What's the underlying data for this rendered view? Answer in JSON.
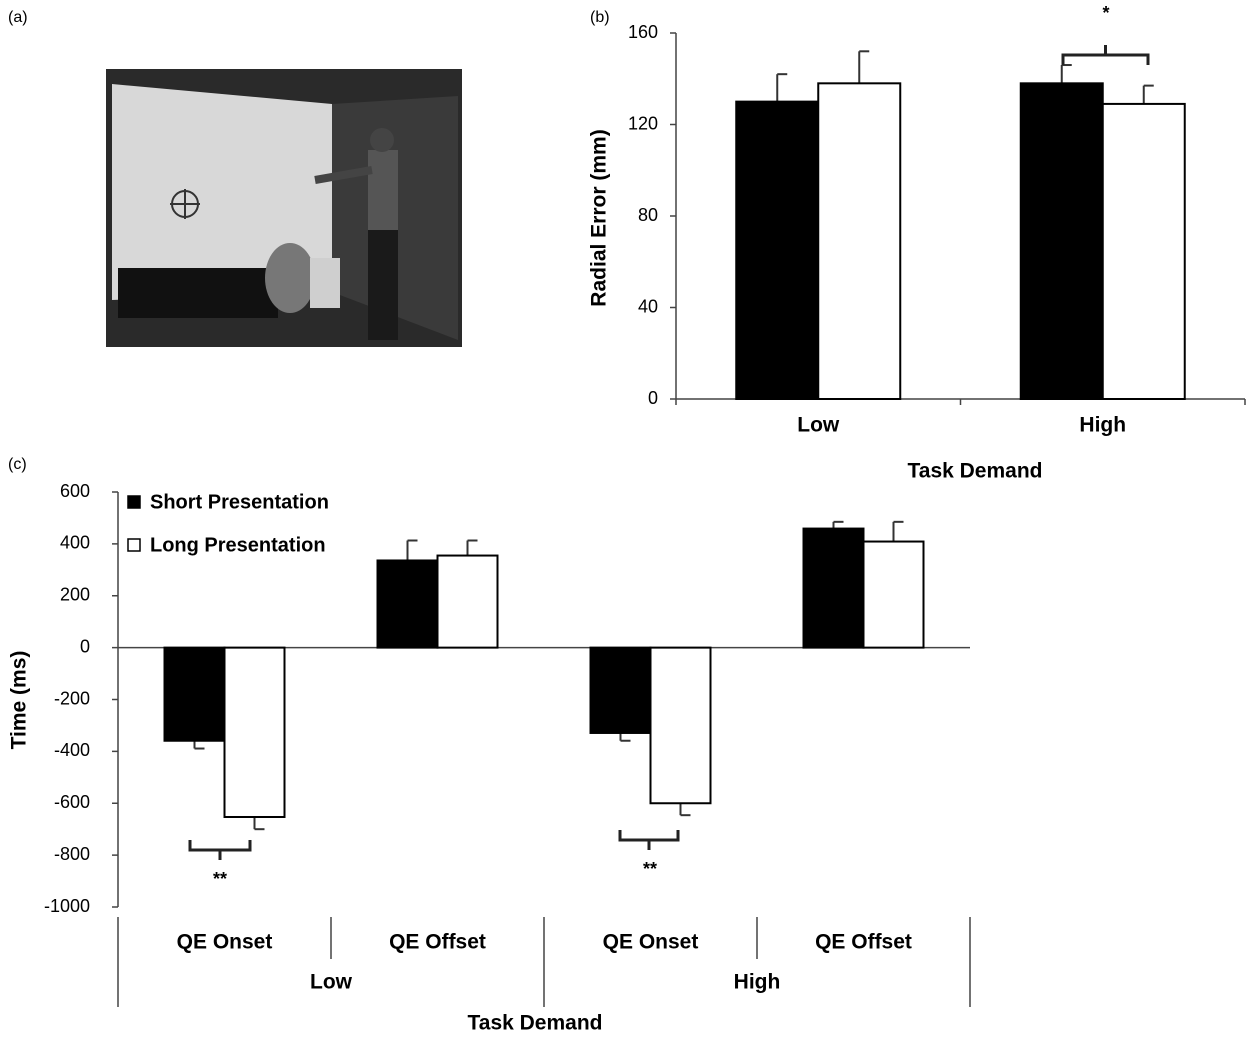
{
  "photo": {
    "panel_label": "(a)"
  },
  "chart_data": [
    {
      "type": "bar",
      "panel_label": "(b)",
      "categories": [
        "Low",
        "High"
      ],
      "series": [
        {
          "color": "#000000",
          "values": [
            130,
            138
          ],
          "errors": [
            12,
            8
          ]
        },
        {
          "color": "#ffffff",
          "values": [
            138,
            129
          ],
          "errors": [
            14,
            8
          ]
        }
      ],
      "ylim": [
        0,
        160
      ],
      "yticks": [
        0,
        40,
        80,
        120,
        160
      ],
      "y_label": "Radial Error (mm)",
      "x_label": "Task Demand",
      "annotations": [
        "*"
      ]
    },
    {
      "type": "bar",
      "panel_label": "(c)",
      "categories": [
        "QE Onset",
        "QE Offset",
        "QE Onset",
        "QE Offset"
      ],
      "groups": [
        "Low",
        "High"
      ],
      "series": [
        {
          "name": "Short Presentation",
          "color": "#000000",
          "values": [
            -359,
            336,
            -329,
            459
          ],
          "errors": [
            30,
            77,
            30,
            26
          ]
        },
        {
          "name": "Long Presentation",
          "color": "#ffffff",
          "values": [
            -653,
            355,
            -600,
            409
          ],
          "errors": [
            47,
            58,
            46,
            76
          ]
        }
      ],
      "ylim": [
        -1000,
        600
      ],
      "yticks": [
        600,
        400,
        200,
        0,
        -200,
        -400,
        -600,
        -800,
        -1000
      ],
      "y_label": "Time (ms)",
      "x_label": "Task Demand",
      "legend": "top-left",
      "annotations": [
        "**",
        "**"
      ]
    }
  ]
}
